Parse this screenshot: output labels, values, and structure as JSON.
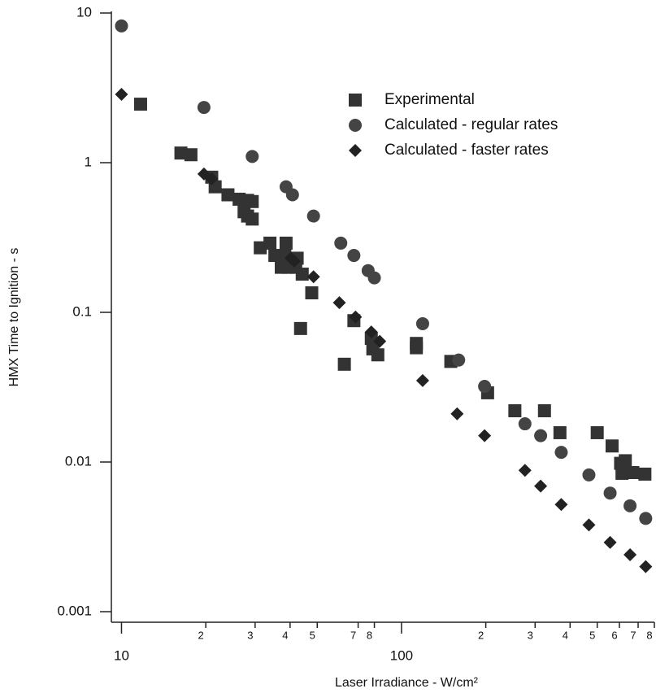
{
  "chart_data": {
    "type": "scatter",
    "x_label": "Laser Irradiance - W/cm²",
    "y_label": "HMX Time to Ignition - s",
    "xscale": "log",
    "yscale": "log",
    "grid": false,
    "legend": "upper right",
    "xlim": [
      9.2,
      800
    ],
    "ylim": [
      0.00085,
      10
    ],
    "xticks": [
      10,
      {
        "value": 20,
        "label": "2"
      },
      {
        "value": 30,
        "label": "3"
      },
      {
        "value": 40,
        "label": "4"
      },
      {
        "value": 50,
        "label": "5"
      },
      {
        "value": 70,
        "label": "7"
      },
      {
        "value": 80,
        "label": "8"
      },
      100,
      {
        "value": 200,
        "label": "2"
      },
      {
        "value": 300,
        "label": "3"
      },
      {
        "value": 400,
        "label": "4"
      },
      {
        "value": 500,
        "label": "5"
      },
      {
        "value": 600,
        "label": "6"
      },
      {
        "value": 700,
        "label": "7"
      },
      {
        "value": 800,
        "label": "8"
      }
    ],
    "yticks": [
      10,
      1,
      0.1,
      0.01,
      0.001
    ],
    "series": [
      {
        "name": "Experimental",
        "marker": "square",
        "color": "#333333",
        "x": [
          11.7,
          16.3,
          17.7,
          21,
          21.6,
          24,
          26.3,
          28.2,
          27.4,
          29.3,
          28.2,
          29.3,
          31.3,
          33.9,
          35.3,
          38.7,
          38.3,
          37.2,
          39.2,
          41.9,
          42.4,
          43.6,
          44.2,
          47.8,
          62.5,
          67.6,
          78,
          79,
          82.3,
          113,
          113,
          150,
          203,
          254,
          324,
          368,
          500,
          565,
          606,
          613,
          630,
          670,
          740
        ],
        "values": [
          2.46,
          1.16,
          1.13,
          0.8,
          0.69,
          0.61,
          0.57,
          0.56,
          0.47,
          0.55,
          0.44,
          0.42,
          0.27,
          0.29,
          0.24,
          0.29,
          0.24,
          0.2,
          0.2,
          0.2,
          0.23,
          0.078,
          0.18,
          0.135,
          0.045,
          0.088,
          0.067,
          0.057,
          0.052,
          0.062,
          0.058,
          0.047,
          0.029,
          0.022,
          0.022,
          0.0157,
          0.0157,
          0.0128,
          0.0098,
          0.0084,
          0.0102,
          0.0085,
          0.0083
        ]
      },
      {
        "name": "Calculated - regular rates",
        "marker": "circle",
        "color": "#444444",
        "x": [
          10,
          19.7,
          29.3,
          38.7,
          40.8,
          48.5,
          60.7,
          67.6,
          76,
          80,
          119,
          160,
          198,
          276,
          314,
          372,
          467,
          556,
          655,
          745
        ],
        "values": [
          8.2,
          2.34,
          1.1,
          0.69,
          0.61,
          0.44,
          0.29,
          0.24,
          0.19,
          0.17,
          0.084,
          0.048,
          0.032,
          0.018,
          0.015,
          0.0116,
          0.0082,
          0.0062,
          0.0051,
          0.0042
        ]
      },
      {
        "name": "Calculated - faster rates",
        "marker": "diamond",
        "color": "#222222",
        "x": [
          10,
          19.7,
          21,
          40.3,
          41.4,
          48.5,
          60,
          68.5,
          78,
          83.6,
          119,
          158,
          198,
          276,
          314,
          372,
          467,
          556,
          655,
          745
        ],
        "values": [
          2.86,
          0.84,
          0.78,
          0.23,
          0.22,
          0.173,
          0.116,
          0.093,
          0.074,
          0.064,
          0.035,
          0.021,
          0.015,
          0.0088,
          0.0069,
          0.0052,
          0.0038,
          0.0029,
          0.0024,
          0.002
        ]
      }
    ]
  }
}
